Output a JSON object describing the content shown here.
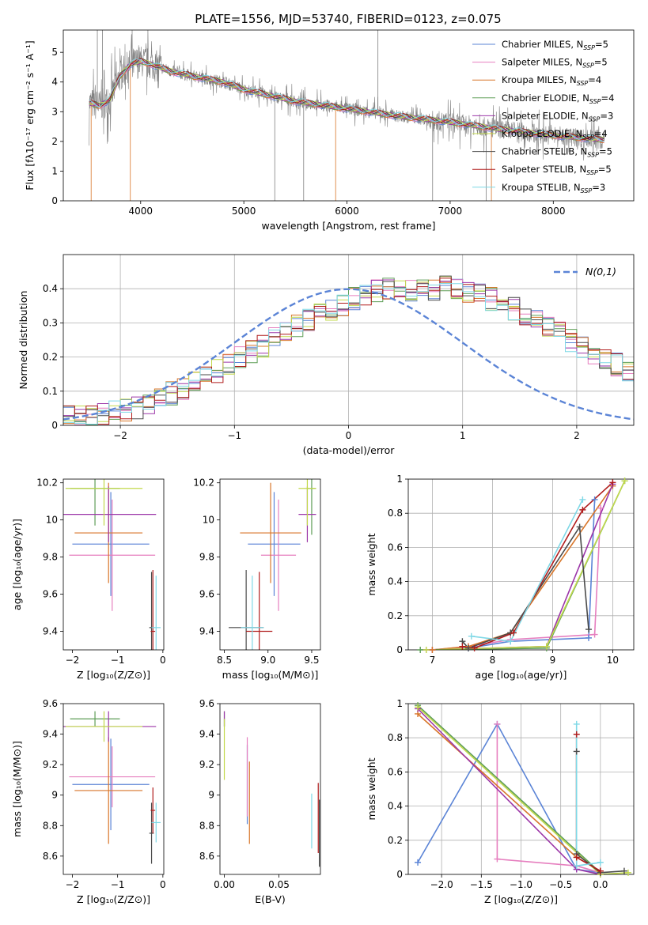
{
  "title": "PLATE=1556, MJD=53740, FIBERID=0123, z=0.075",
  "colors": {
    "Chabrier MILES": "#5b84d6",
    "Salpeter MILES": "#e67fbf",
    "Kroupa MILES": "#d8762a",
    "Chabrier ELODIE": "#5e9e57",
    "Salpeter ELODIE": "#9c36a8",
    "Kroupa ELODIE": "#c2d94b",
    "Chabrier STELIB": "#4a4a4a",
    "Salpeter STELIB": "#b01c1c",
    "Kroupa STELIB": "#7fd8e6",
    "data": "#808080",
    "normal": "#5b84d6"
  },
  "chart_data": [
    {
      "type": "line",
      "xlabel": "wavelength [Angstrom, rest frame]",
      "ylabel": "Flux [fλ10⁻¹⁷ erg cm⁻² s⁻¹ A⁻¹]",
      "xlim": [
        3250,
        8780
      ],
      "ylim": [
        0,
        5.75
      ],
      "xticks": [
        4000,
        5000,
        6000,
        7000,
        8000
      ],
      "yticks": [
        0,
        1,
        2,
        3,
        4,
        5
      ],
      "legend_position": "right",
      "legend": [
        "Chabrier MILES, N_SSP=5",
        "Salpeter MILES, N_SSP=5",
        "Kroupa MILES, N_SSP=4",
        "Chabrier ELODIE, N_SSP=4",
        "Salpeter ELODIE, N_SSP=3",
        "Kroupa ELODIE, N_SSP=4",
        "Chabrier STELIB, N_SSP=5",
        "Salpeter STELIB, N_SSP=5",
        "Kroupa STELIB, N_SSP=3"
      ],
      "model_continuum": {
        "x": [
          3500,
          3600,
          3700,
          3800,
          3900,
          4000,
          4100,
          4300,
          4500,
          4800,
          5000,
          5500,
          6000,
          6500,
          7000,
          7500,
          8000,
          8500
        ],
        "y": [
          3.3,
          3.2,
          3.4,
          4.2,
          4.6,
          4.7,
          4.6,
          4.35,
          4.2,
          4.0,
          3.75,
          3.35,
          3.1,
          2.85,
          2.65,
          2.4,
          2.2,
          2.05
        ]
      }
    },
    {
      "type": "step",
      "xlabel": "(data-model)/error",
      "ylabel": "Normed distribution",
      "xlim": [
        -2.5,
        2.5
      ],
      "ylim": [
        0,
        0.5
      ],
      "xticks": [
        -2,
        -1,
        0,
        1,
        2
      ],
      "yticks": [
        0.0,
        0.1,
        0.2,
        0.3,
        0.4
      ],
      "grid": true,
      "legend": [
        "N(0,1)"
      ],
      "legend_position": "top-right",
      "bin_width": 0.1,
      "bin_start": -2.5,
      "hist_mean": [
        0.022,
        0.024,
        0.026,
        0.031,
        0.037,
        0.046,
        0.054,
        0.066,
        0.079,
        0.093,
        0.108,
        0.125,
        0.142,
        0.159,
        0.178,
        0.196,
        0.214,
        0.233,
        0.252,
        0.27,
        0.288,
        0.305,
        0.322,
        0.34,
        0.355,
        0.37,
        0.382,
        0.392,
        0.402,
        0.41,
        0.398,
        0.392,
        0.4,
        0.405,
        0.4,
        0.392,
        0.382,
        0.37,
        0.358,
        0.342,
        0.328,
        0.31,
        0.29,
        0.27,
        0.25,
        0.232,
        0.214,
        0.196,
        0.178,
        0.158,
        0.14,
        0.124,
        0.108,
        0.094,
        0.08,
        0.068,
        0.058,
        0.05,
        0.045,
        0.04
      ]
    },
    {
      "type": "errorbar",
      "xlabel": "Z [log₁₀(Z/Z⊙)]",
      "ylabel": "age [log₁₀(age/yr)]",
      "xlim": [
        -2.2,
        0.02
      ],
      "ylim": [
        9.3,
        10.22
      ],
      "xticks": [
        -2,
        -1,
        0
      ],
      "yticks": [
        9.4,
        9.6,
        9.8,
        10.0,
        10.2
      ],
      "points": [
        {
          "m": "Chabrier MILES",
          "x": -1.15,
          "xerr": 0.85,
          "y": 9.87,
          "yerr": 0.28
        },
        {
          "m": "Salpeter MILES",
          "x": -1.12,
          "xerr": 0.95,
          "y": 9.81,
          "yerr": 0.3
        },
        {
          "m": "Kroupa MILES",
          "x": -1.2,
          "xerr": 0.75,
          "y": 9.93,
          "yerr": 0.27
        },
        {
          "m": "Chabrier ELODIE",
          "x": -1.5,
          "xerr": 0.55,
          "y": 10.17,
          "yerr": 0.2
        },
        {
          "m": "Salpeter ELODIE",
          "x": -1.2,
          "xerr": 1.05,
          "y": 10.03,
          "yerr": 0.15
        },
        {
          "m": "Kroupa ELODIE",
          "x": -1.3,
          "xerr": 0.85,
          "y": 10.17,
          "yerr": 0.2
        },
        {
          "m": "Chabrier STELIB",
          "x": -0.25,
          "xerr": 0.05,
          "y": 9.42,
          "yerr": 0.3
        },
        {
          "m": "Salpeter STELIB",
          "x": -0.22,
          "xerr": 0.05,
          "y": 9.4,
          "yerr": 0.33
        },
        {
          "m": "Kroupa STELIB",
          "x": -0.15,
          "xerr": 0.1,
          "y": 9.42,
          "yerr": 0.28
        }
      ]
    },
    {
      "type": "errorbar",
      "xlabel": "mass [log₁₀(M/M⊙)]",
      "ylabel": "",
      "xlim": [
        8.45,
        9.6
      ],
      "ylim": [
        9.3,
        10.22
      ],
      "xticks": [
        8.5,
        9.0,
        9.5
      ],
      "yticks": [
        9.4,
        9.6,
        9.8,
        10.0,
        10.2
      ],
      "points": [
        {
          "m": "Chabrier MILES",
          "x": 9.07,
          "xerr": 0.3,
          "y": 9.87,
          "yerr": 0.28
        },
        {
          "m": "Salpeter MILES",
          "x": 9.12,
          "xerr": 0.2,
          "y": 9.81,
          "yerr": 0.3
        },
        {
          "m": "Kroupa MILES",
          "x": 9.03,
          "xerr": 0.35,
          "y": 9.93,
          "yerr": 0.27
        },
        {
          "m": "Chabrier ELODIE",
          "x": 9.5,
          "xerr": 0.05,
          "y": 10.17,
          "yerr": 0.25
        },
        {
          "m": "Salpeter ELODIE",
          "x": 9.45,
          "xerr": 0.1,
          "y": 10.03,
          "yerr": 0.15
        },
        {
          "m": "Kroupa ELODIE",
          "x": 9.45,
          "xerr": 0.1,
          "y": 10.17,
          "yerr": 0.2
        },
        {
          "m": "Chabrier STELIB",
          "x": 8.75,
          "xerr": 0.2,
          "y": 9.42,
          "yerr": 0.31
        },
        {
          "m": "Salpeter STELIB",
          "x": 8.9,
          "xerr": 0.15,
          "y": 9.4,
          "yerr": 0.32
        },
        {
          "m": "Kroupa STELIB",
          "x": 8.82,
          "xerr": 0.13,
          "y": 9.42,
          "yerr": 0.28
        }
      ]
    },
    {
      "type": "line",
      "xlabel": "age [log₁₀(age/yr)]",
      "ylabel": "mass weight",
      "xlim": [
        6.6,
        10.35
      ],
      "ylim": [
        0,
        1.0
      ],
      "xticks": [
        7,
        8,
        9,
        10
      ],
      "yticks": [
        0.0,
        0.2,
        0.4,
        0.6,
        0.8,
        1.0
      ],
      "grid": true,
      "series": [
        {
          "m": "Chabrier MILES",
          "x": [
            7.0,
            7.6,
            8.3,
            9.6,
            9.7
          ],
          "y": [
            0.0,
            0.01,
            0.05,
            0.07,
            0.88
          ]
        },
        {
          "m": "Salpeter MILES",
          "x": [
            7.0,
            7.6,
            8.3,
            9.7,
            9.8
          ],
          "y": [
            0.0,
            0.02,
            0.06,
            0.09,
            0.83
          ]
        },
        {
          "m": "Kroupa MILES",
          "x": [
            7.0,
            7.6,
            8.3,
            10.0
          ],
          "y": [
            0.0,
            0.02,
            0.1,
            0.96
          ]
        },
        {
          "m": "Chabrier ELODIE",
          "x": [
            6.8,
            8.9,
            10.2
          ],
          "y": [
            0.0,
            0.01,
            0.99
          ]
        },
        {
          "m": "Salpeter ELODIE",
          "x": [
            6.9,
            8.9,
            10.0
          ],
          "y": [
            0.0,
            0.02,
            0.97
          ]
        },
        {
          "m": "Kroupa ELODIE",
          "x": [
            6.9,
            8.9,
            10.2
          ],
          "y": [
            0.0,
            0.02,
            0.99
          ]
        },
        {
          "m": "Chabrier STELIB",
          "x": [
            7.5,
            7.6,
            8.3,
            9.45,
            9.6
          ],
          "y": [
            0.05,
            0.01,
            0.1,
            0.72,
            0.12
          ]
        },
        {
          "m": "Salpeter STELIB",
          "x": [
            7.5,
            7.7,
            8.35,
            9.5,
            10.0
          ],
          "y": [
            0.02,
            0.01,
            0.1,
            0.82,
            0.98
          ]
        },
        {
          "m": "Kroupa STELIB",
          "x": [
            7.65,
            8.3,
            9.5
          ],
          "y": [
            0.08,
            0.05,
            0.88
          ]
        }
      ]
    },
    {
      "type": "errorbar",
      "xlabel": "Z [log₁₀(Z/Z⊙)]",
      "ylabel": "mass [log₁₀(M/M⊙)]",
      "xlim": [
        -2.2,
        0.02
      ],
      "ylim": [
        8.48,
        9.6
      ],
      "xticks": [
        -2,
        -1,
        0
      ],
      "yticks": [
        8.6,
        8.8,
        9.0,
        9.2,
        9.4,
        9.6
      ],
      "points": [
        {
          "m": "Chabrier MILES",
          "x": -1.15,
          "xerr": 0.85,
          "y": 9.07,
          "yerr": 0.3
        },
        {
          "m": "Salpeter MILES",
          "x": -1.12,
          "xerr": 0.95,
          "y": 9.12,
          "yerr": 0.2
        },
        {
          "m": "Kroupa MILES",
          "x": -1.2,
          "xerr": 0.75,
          "y": 9.03,
          "yerr": 0.35
        },
        {
          "m": "Chabrier ELODIE",
          "x": -1.5,
          "xerr": 0.55,
          "y": 9.5,
          "yerr": 0.05
        },
        {
          "m": "Salpeter ELODIE",
          "x": -1.2,
          "xerr": 1.05,
          "y": 9.45,
          "yerr": 0.1
        },
        {
          "m": "Kroupa ELODIE",
          "x": -1.3,
          "xerr": 0.85,
          "y": 9.45,
          "yerr": 0.1
        },
        {
          "m": "Chabrier STELIB",
          "x": -0.25,
          "xerr": 0.05,
          "y": 8.75,
          "yerr": 0.2
        },
        {
          "m": "Salpeter STELIB",
          "x": -0.22,
          "xerr": 0.05,
          "y": 8.9,
          "yerr": 0.15
        },
        {
          "m": "Kroupa STELIB",
          "x": -0.15,
          "xerr": 0.1,
          "y": 8.82,
          "yerr": 0.13
        }
      ]
    },
    {
      "type": "errorbar",
      "xlabel": "E(B-V)",
      "ylabel": "",
      "xlim": [
        -0.004,
        0.088
      ],
      "ylim": [
        8.48,
        9.6
      ],
      "xticks": [
        0.0,
        0.05
      ],
      "yticks": [
        8.6,
        8.8,
        9.0,
        9.2,
        9.4,
        9.6
      ],
      "points": [
        {
          "m": "Chabrier MILES",
          "x": 0.021,
          "y": 9.07,
          "yerr": 0.26
        },
        {
          "m": "Salpeter MILES",
          "x": 0.021,
          "y": 9.12,
          "yerr": 0.26
        },
        {
          "m": "Kroupa MILES",
          "x": 0.023,
          "y": 8.95,
          "yerr": 0.27
        },
        {
          "m": "Chabrier ELODIE",
          "x": 0.0,
          "y": 9.5,
          "yerr": 0.05
        },
        {
          "m": "Salpeter ELODIE",
          "x": 0.0,
          "y": 9.5,
          "yerr": 0.05
        },
        {
          "m": "Kroupa ELODIE",
          "x": 0.0,
          "y": 9.3,
          "yerr": 0.2
        },
        {
          "m": "Chabrier STELIB",
          "x": 0.087,
          "y": 8.75,
          "yerr": 0.22
        },
        {
          "m": "Salpeter STELIB",
          "x": 0.086,
          "y": 8.85,
          "yerr": 0.23
        },
        {
          "m": "Kroupa STELIB",
          "x": 0.08,
          "y": 8.83,
          "yerr": 0.18
        }
      ]
    },
    {
      "type": "line",
      "xlabel": "Z [log₁₀(Z/Z⊙)]",
      "ylabel": "mass weight",
      "xlim": [
        -2.42,
        0.42
      ],
      "ylim": [
        0,
        1.0
      ],
      "xticks": [
        -2.0,
        -1.5,
        -1.0,
        -0.5,
        0.0
      ],
      "yticks": [
        0.0,
        0.2,
        0.4,
        0.6,
        0.8,
        1.0
      ],
      "grid": true,
      "series": [
        {
          "m": "Chabrier MILES",
          "x": [
            -2.3,
            -1.3,
            -0.3,
            0.0
          ],
          "y": [
            0.07,
            0.88,
            0.03,
            0.01
          ]
        },
        {
          "m": "Salpeter MILES",
          "x": [
            -1.3,
            -1.3,
            -0.3,
            0.0
          ],
          "y": [
            0.88,
            0.09,
            0.05,
            0.01
          ]
        },
        {
          "m": "Kroupa MILES",
          "x": [
            -2.3,
            -0.3,
            0.0
          ],
          "y": [
            0.94,
            0.1,
            0.02
          ]
        },
        {
          "m": "Chabrier ELODIE",
          "x": [
            -2.3,
            0.0
          ],
          "y": [
            0.99,
            0.01
          ]
        },
        {
          "m": "Salpeter ELODIE",
          "x": [
            -2.3,
            -0.3,
            0.0
          ],
          "y": [
            0.97,
            0.03,
            0.0
          ]
        },
        {
          "m": "Kroupa ELODIE",
          "x": [
            -2.3,
            0.0,
            0.35
          ],
          "y": [
            0.98,
            0.0,
            0.01
          ]
        },
        {
          "m": "Chabrier STELIB",
          "x": [
            -0.3,
            -0.3,
            0.0,
            0.3
          ],
          "y": [
            0.72,
            0.12,
            0.01,
            0.02
          ]
        },
        {
          "m": "Salpeter STELIB",
          "x": [
            -0.3,
            -0.3,
            0.0
          ],
          "y": [
            0.82,
            0.1,
            0.02
          ]
        },
        {
          "m": "Kroupa STELIB",
          "x": [
            -0.3,
            -0.3,
            0.0
          ],
          "y": [
            0.88,
            0.05,
            0.07
          ]
        }
      ]
    }
  ]
}
